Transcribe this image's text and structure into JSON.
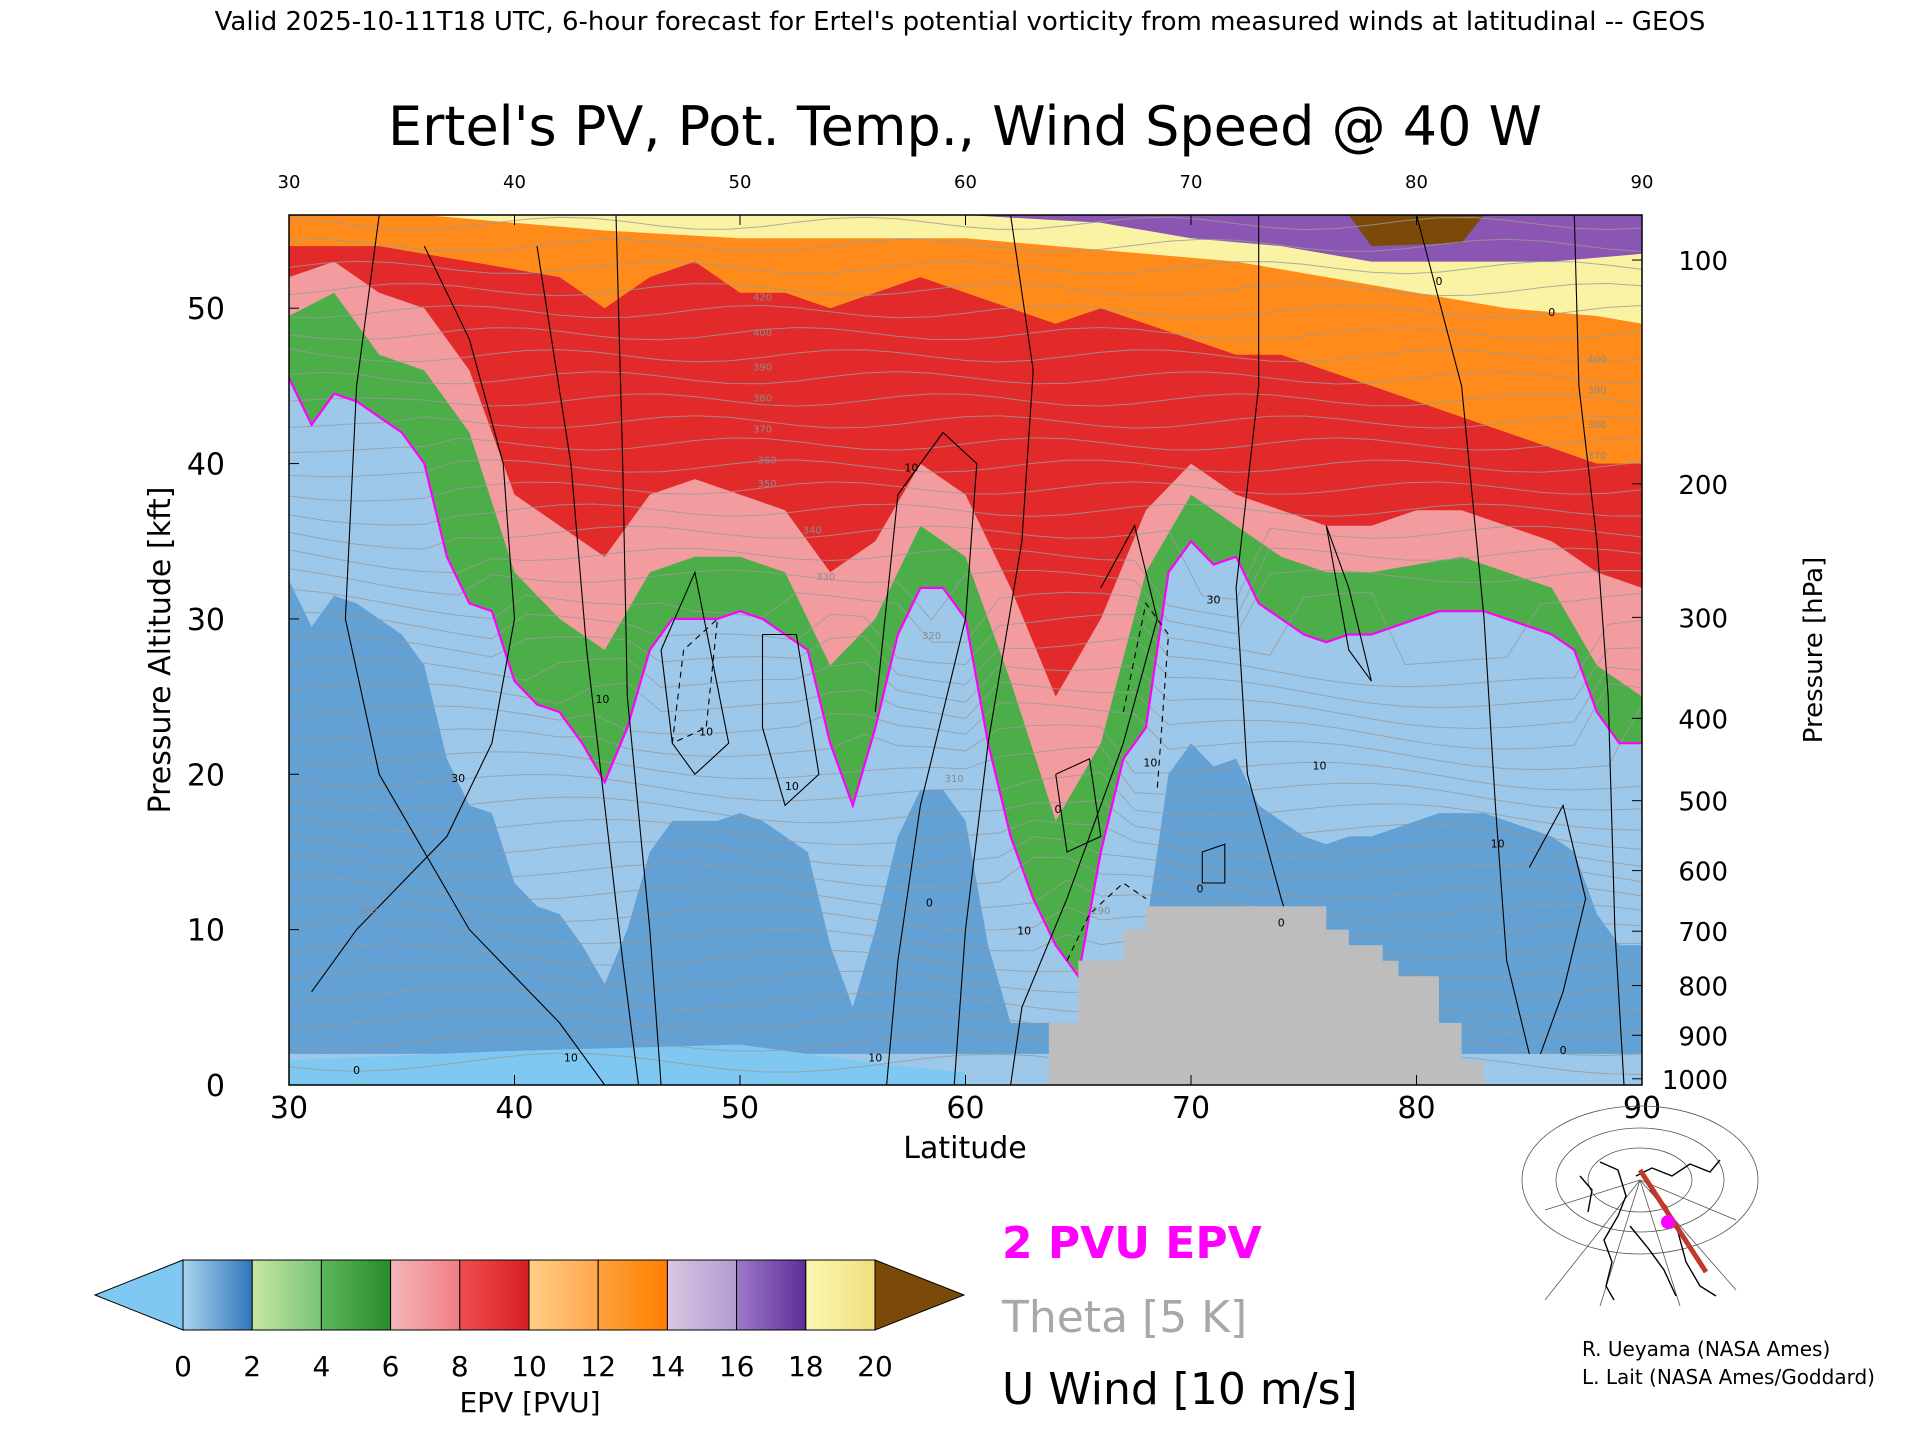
{
  "header": {
    "valid_line": "Valid 2025-10-11T18 UTC, 6-hour forecast for Ertel's potential vorticity from measured winds at latitudinal -- GEOS"
  },
  "chart_data": {
    "type": "heatmap",
    "title": "Ertel's PV, Pot. Temp., Wind Speed @ 40 W",
    "xlabel": "Latitude",
    "ylabel_left": "Pressure Altitude [kft]",
    "ylabel_right": "Pressure [hPa]",
    "x_range": [
      30,
      90
    ],
    "y_range_kft": [
      0,
      56
    ],
    "x_ticks": [
      "30",
      "40",
      "50",
      "60",
      "70",
      "80",
      "90"
    ],
    "top_x_ticks": [
      "30",
      "40",
      "50",
      "60",
      "70",
      "80",
      "90"
    ],
    "y_ticks_kft": [
      "0",
      "10",
      "20",
      "30",
      "40",
      "50"
    ],
    "y_ticks_hpa": [
      "100",
      "200",
      "300",
      "400",
      "500",
      "600",
      "700",
      "800",
      "900",
      "1000"
    ],
    "hpa_positions_kft": [
      53.1,
      38.7,
      30.1,
      23.6,
      18.3,
      13.8,
      9.9,
      6.4,
      3.2,
      0.4
    ],
    "tropopause_2pvu_kft": [
      [
        30,
        45.5
      ],
      [
        31,
        42.5
      ],
      [
        32,
        44.5
      ],
      [
        33,
        44
      ],
      [
        34,
        43
      ],
      [
        35,
        42
      ],
      [
        36,
        40
      ],
      [
        37,
        34
      ],
      [
        38,
        31
      ],
      [
        39,
        30.5
      ],
      [
        40,
        26
      ],
      [
        41,
        24.5
      ],
      [
        42,
        24
      ],
      [
        43,
        22
      ],
      [
        44,
        19.5
      ],
      [
        45,
        23
      ],
      [
        46,
        28
      ],
      [
        47,
        30
      ],
      [
        48,
        30
      ],
      [
        49,
        30
      ],
      [
        50,
        30.5
      ],
      [
        51,
        30
      ],
      [
        52,
        29
      ],
      [
        53,
        28
      ],
      [
        54,
        22
      ],
      [
        55,
        18
      ],
      [
        56,
        23
      ],
      [
        57,
        29
      ],
      [
        58,
        32
      ],
      [
        59,
        32
      ],
      [
        60,
        30
      ],
      [
        61,
        22
      ],
      [
        62,
        16
      ],
      [
        63,
        12
      ],
      [
        64,
        9
      ],
      [
        65,
        7
      ],
      [
        66,
        15
      ],
      [
        67,
        21
      ],
      [
        68,
        23
      ],
      [
        69,
        33
      ],
      [
        70,
        35
      ],
      [
        71,
        33.5
      ],
      [
        72,
        34
      ],
      [
        73,
        31
      ],
      [
        74,
        30
      ],
      [
        75,
        29
      ],
      [
        76,
        28.5
      ],
      [
        77,
        29
      ],
      [
        78,
        29
      ],
      [
        79,
        29.5
      ],
      [
        80,
        30
      ],
      [
        81,
        30.5
      ],
      [
        82,
        30.5
      ],
      [
        83,
        30.5
      ],
      [
        84,
        30
      ],
      [
        85,
        29.5
      ],
      [
        86,
        29
      ],
      [
        87,
        28
      ],
      [
        88,
        24
      ],
      [
        89,
        22
      ],
      [
        90,
        22
      ]
    ],
    "stratosphere_boundaries_kft": {
      "green_top": [
        [
          30,
          49.5
        ],
        [
          32,
          51
        ],
        [
          34,
          47
        ],
        [
          36,
          46
        ],
        [
          38,
          42
        ],
        [
          40,
          33
        ],
        [
          42,
          30
        ],
        [
          44,
          28
        ],
        [
          46,
          33
        ],
        [
          48,
          34
        ],
        [
          50,
          34
        ],
        [
          52,
          33
        ],
        [
          54,
          27
        ],
        [
          56,
          30
        ],
        [
          58,
          36
        ],
        [
          60,
          34
        ],
        [
          62,
          26
        ],
        [
          64,
          17
        ],
        [
          66,
          22
        ],
        [
          68,
          33
        ],
        [
          70,
          38
        ],
        [
          72,
          36
        ],
        [
          74,
          34
        ],
        [
          76,
          33
        ],
        [
          78,
          33
        ],
        [
          80,
          33.5
        ],
        [
          82,
          34
        ],
        [
          84,
          33
        ],
        [
          86,
          32
        ],
        [
          88,
          27
        ],
        [
          90,
          25
        ]
      ],
      "pink_top": [
        [
          30,
          52
        ],
        [
          32,
          53
        ],
        [
          34,
          51
        ],
        [
          36,
          50
        ],
        [
          38,
          46
        ],
        [
          40,
          38
        ],
        [
          42,
          36
        ],
        [
          44,
          34
        ],
        [
          46,
          38
        ],
        [
          48,
          39
        ],
        [
          50,
          38
        ],
        [
          52,
          37
        ],
        [
          54,
          33
        ],
        [
          56,
          35
        ],
        [
          58,
          40
        ],
        [
          60,
          38
        ],
        [
          62,
          32
        ],
        [
          64,
          25
        ],
        [
          66,
          30
        ],
        [
          68,
          37
        ],
        [
          70,
          40
        ],
        [
          72,
          38
        ],
        [
          74,
          37
        ],
        [
          76,
          36
        ],
        [
          78,
          36
        ],
        [
          80,
          37
        ],
        [
          82,
          37
        ],
        [
          84,
          36
        ],
        [
          86,
          35
        ],
        [
          88,
          33
        ],
        [
          90,
          32
        ]
      ],
      "red_top": [
        [
          30,
          54
        ],
        [
          34,
          54
        ],
        [
          38,
          53
        ],
        [
          42,
          52
        ],
        [
          44,
          50
        ],
        [
          46,
          52
        ],
        [
          48,
          53
        ],
        [
          50,
          51
        ],
        [
          52,
          51
        ],
        [
          54,
          50
        ],
        [
          56,
          51
        ],
        [
          58,
          52
        ],
        [
          60,
          51
        ],
        [
          62,
          50
        ],
        [
          64,
          49
        ],
        [
          66,
          50
        ],
        [
          68,
          49
        ],
        [
          70,
          48
        ],
        [
          72,
          47
        ],
        [
          74,
          47
        ],
        [
          76,
          46
        ],
        [
          78,
          45
        ],
        [
          80,
          44
        ],
        [
          82,
          43
        ],
        [
          84,
          42
        ],
        [
          86,
          41
        ],
        [
          88,
          40
        ],
        [
          90,
          40
        ]
      ],
      "orange_top": [
        [
          30,
          56
        ],
        [
          36,
          56
        ],
        [
          40,
          55.5
        ],
        [
          44,
          55
        ],
        [
          50,
          54.5
        ],
        [
          56,
          54.5
        ],
        [
          60,
          54.5
        ],
        [
          64,
          54
        ],
        [
          68,
          53.5
        ],
        [
          72,
          53
        ],
        [
          76,
          52
        ],
        [
          80,
          51
        ],
        [
          84,
          50
        ],
        [
          88,
          49.5
        ],
        [
          90,
          49
        ]
      ],
      "purple_top": [
        [
          60,
          56
        ],
        [
          66,
          55.5
        ],
        [
          70,
          54.5
        ],
        [
          74,
          54
        ],
        [
          78,
          53
        ],
        [
          82,
          53
        ],
        [
          86,
          53
        ],
        [
          90,
          53.5
        ]
      ]
    },
    "u_wind_contour_labels": [
      {
        "x": 37.5,
        "y": 19.5,
        "label": "30"
      },
      {
        "x": 43.9,
        "y": 24.6,
        "label": "10"
      },
      {
        "x": 48.5,
        "y": 22.5,
        "label": "10"
      },
      {
        "x": 52.3,
        "y": 19,
        "label": "10"
      },
      {
        "x": 57.6,
        "y": 39.5,
        "label": "10"
      },
      {
        "x": 56,
        "y": 1.5,
        "label": "10"
      },
      {
        "x": 62.6,
        "y": 9.7,
        "label": "10"
      },
      {
        "x": 68.2,
        "y": 20.5,
        "label": "10"
      },
      {
        "x": 71,
        "y": 31,
        "label": "30"
      },
      {
        "x": 75.7,
        "y": 20.3,
        "label": "10"
      },
      {
        "x": 83.6,
        "y": 15.3,
        "label": "10"
      },
      {
        "x": 58.4,
        "y": 11.5,
        "label": "0"
      },
      {
        "x": 33,
        "y": 0.7,
        "label": "0"
      },
      {
        "x": 64.1,
        "y": 17.5,
        "label": "0"
      },
      {
        "x": 70.4,
        "y": 12.4,
        "label": "0"
      },
      {
        "x": 74,
        "y": 10.2,
        "label": "0"
      },
      {
        "x": 81,
        "y": 51.5,
        "label": "0"
      },
      {
        "x": 86,
        "y": 49.5,
        "label": "0"
      },
      {
        "x": 86.5,
        "y": 2,
        "label": "0"
      },
      {
        "x": 42.5,
        "y": 1.5,
        "label": "10"
      }
    ],
    "theta_contour_labels": [
      {
        "x": 51,
        "y": 50.5,
        "label": "420"
      },
      {
        "x": 51,
        "y": 48.2,
        "label": "400"
      },
      {
        "x": 51,
        "y": 46,
        "label": "390"
      },
      {
        "x": 51,
        "y": 44,
        "label": "380"
      },
      {
        "x": 51,
        "y": 42,
        "label": "370"
      },
      {
        "x": 51.2,
        "y": 40,
        "label": "360"
      },
      {
        "x": 51.2,
        "y": 38.5,
        "label": "350"
      },
      {
        "x": 53.2,
        "y": 35.5,
        "label": "340"
      },
      {
        "x": 53.8,
        "y": 32.5,
        "label": "330"
      },
      {
        "x": 58.5,
        "y": 28.7,
        "label": "320"
      },
      {
        "x": 59.5,
        "y": 19.5,
        "label": "310"
      },
      {
        "x": 66,
        "y": 11,
        "label": "290"
      },
      {
        "x": 33.5,
        "y": 11,
        "label": "300"
      },
      {
        "x": 88,
        "y": 46.5,
        "label": "400"
      },
      {
        "x": 88,
        "y": 44.5,
        "label": "390"
      },
      {
        "x": 88,
        "y": 42.3,
        "label": "380"
      },
      {
        "x": 88,
        "y": 40.3,
        "label": "370"
      }
    ],
    "legend": {
      "colorbar_ticks": [
        "0",
        "2",
        "4",
        "6",
        "8",
        "10",
        "12",
        "14",
        "16",
        "18",
        "20"
      ],
      "colorbar_label": "EPV [PVU]",
      "entries": [
        "2 PVU EPV",
        "Theta [5 K]",
        "U Wind [10 m/s]"
      ],
      "entry_colors": [
        "#ff00ff",
        "#a8a8a8",
        "#000000"
      ]
    },
    "colors": {
      "troposphere_light": "#9ec8ea",
      "troposphere_mid": "#4f94cd",
      "lowest_bin": "#7ec8f2",
      "green": "#4cae48",
      "pink": "#f39ca0",
      "red": "#e32a2a",
      "orange": "#ff8c1a",
      "purple": "#8a55b3",
      "pale_yellow": "#fbf3a4",
      "brown": "#7b4a09",
      "terrain": "#bdbdbd",
      "tropopause": "#ff00ff"
    },
    "colorbar_colors": [
      [
        "#a9d3ef",
        "#2f76b9"
      ],
      [
        "#c8e7a0",
        "#7ac27a"
      ],
      [
        "#5cb85c",
        "#2a8b2a"
      ],
      [
        "#f4b6b8",
        "#ef7e84"
      ],
      [
        "#f04f4f",
        "#d61e24"
      ],
      [
        "#ffcf86",
        "#ffa64d"
      ],
      [
        "#ffa13d",
        "#ff7e00"
      ],
      [
        "#d9c8e2",
        "#b19ad0"
      ],
      [
        "#9c79c9",
        "#5e2e98"
      ],
      [
        "#fbf7b0",
        "#f1df80"
      ]
    ],
    "colorbar_under": "#7ec8f2",
    "colorbar_over": "#7b4a09"
  },
  "credits": [
    "R. Ueyama (NASA Ames)",
    "L. Lait (NASA Ames/Goddard)"
  ]
}
